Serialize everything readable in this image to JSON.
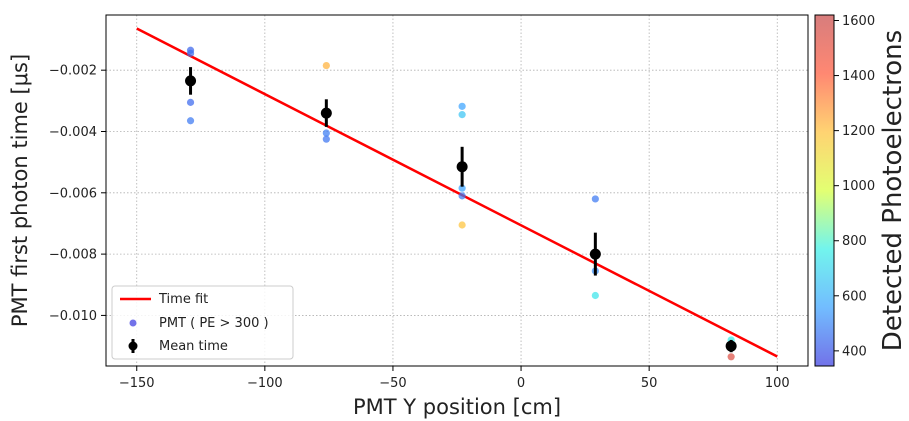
{
  "chart_data": {
    "type": "scatter",
    "xlabel": "PMT Y position [cm]",
    "ylabel": "PMT first photon time [μs]",
    "colorbar_label": "Detected Photoelectrons",
    "xlim": [
      -162,
      112
    ],
    "ylim": [
      -0.01165,
      -0.0002
    ],
    "x_ticks": [
      -150,
      -100,
      -50,
      0,
      50,
      100
    ],
    "y_ticks": [
      -0.01,
      -0.008,
      -0.006,
      -0.004,
      -0.002
    ],
    "x_tick_labels": [
      "−150",
      "−100",
      "−50",
      "0",
      "50",
      "100"
    ],
    "y_tick_labels": [
      "−0.010",
      "−0.008",
      "−0.006",
      "−0.004",
      "−0.002"
    ],
    "colorbar": {
      "range": [
        345,
        1620
      ],
      "ticks": [
        400,
        600,
        800,
        1000,
        1200,
        1400,
        1600
      ],
      "tick_labels": [
        "400",
        "600",
        "800",
        "1000",
        "1200",
        "1400",
        "1600"
      ],
      "colormap": [
        "#3c3ce0",
        "#3ca3ff",
        "#3cf0e6",
        "#d8ff3c",
        "#ffc23c",
        "#ff5a3c",
        "#c84a4a"
      ]
    },
    "grid": true,
    "legend_position": "lower-left",
    "series": [
      {
        "name": "Time fit",
        "kind": "line",
        "color": "#ff0000",
        "x": [
          -150,
          100
        ],
        "y": [
          -0.00064,
          -0.01134
        ]
      },
      {
        "name": "PMT ( PE > 300 )",
        "kind": "scatter",
        "points": [
          {
            "x": -129,
            "y": -0.00135,
            "pe": 430
          },
          {
            "x": -129,
            "y": -0.00145,
            "pe": 450
          },
          {
            "x": -129,
            "y": -0.00305,
            "pe": 440
          },
          {
            "x": -129,
            "y": -0.00365,
            "pe": 470
          },
          {
            "x": -76,
            "y": -0.00185,
            "pe": 1230
          },
          {
            "x": -76,
            "y": -0.00405,
            "pe": 480
          },
          {
            "x": -76,
            "y": -0.00425,
            "pe": 460
          },
          {
            "x": -23,
            "y": -0.00318,
            "pe": 560
          },
          {
            "x": -23,
            "y": -0.00345,
            "pe": 650
          },
          {
            "x": -23,
            "y": -0.00585,
            "pe": 560
          },
          {
            "x": -23,
            "y": -0.0061,
            "pe": 470
          },
          {
            "x": -23,
            "y": -0.00705,
            "pe": 1190
          },
          {
            "x": 29,
            "y": -0.0062,
            "pe": 470
          },
          {
            "x": 29,
            "y": -0.00855,
            "pe": 520
          },
          {
            "x": 29,
            "y": -0.00935,
            "pe": 740
          },
          {
            "x": 82,
            "y": -0.0108,
            "pe": 760
          },
          {
            "x": 82,
            "y": -0.01135,
            "pe": 1540
          }
        ]
      },
      {
        "name": "Mean time",
        "kind": "errorbar",
        "color": "#000000",
        "points": [
          {
            "x": -129,
            "y": -0.00235,
            "err": 0.00045
          },
          {
            "x": -76,
            "y": -0.0034,
            "err": 0.00045
          },
          {
            "x": -23,
            "y": -0.00515,
            "err": 0.00065
          },
          {
            "x": 29,
            "y": -0.008,
            "err": 0.0007
          },
          {
            "x": 82,
            "y": -0.011,
            "err": 0.0002
          }
        ]
      }
    ]
  }
}
